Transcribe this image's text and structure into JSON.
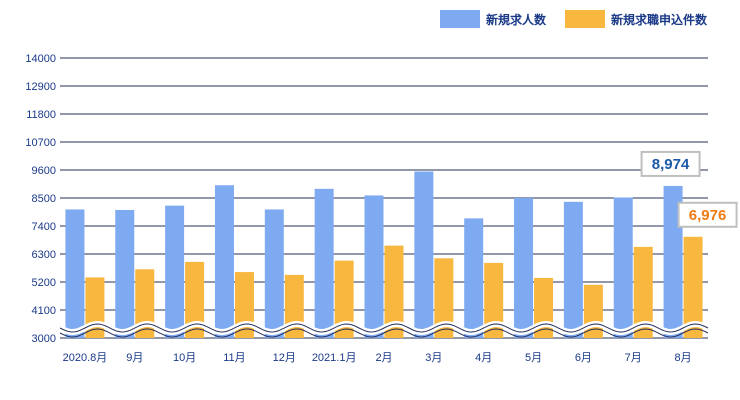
{
  "colors": {
    "series1": "#7eaaf2",
    "series2": "#f8b73f",
    "grid": "#26305a",
    "axis_text": "#1a3a88",
    "callout1_text": "#1a5aa8",
    "callout2_text": "#f07b12",
    "callout_border": "#bfbfbf"
  },
  "legend": [
    {
      "label": "新規求人数"
    },
    {
      "label": "新規求職申込件数"
    }
  ],
  "chart_data": {
    "type": "bar",
    "title": "",
    "xlabel": "",
    "ylabel": "",
    "categories": [
      "2020.8月",
      "9月",
      "10月",
      "11月",
      "12月",
      "2021.1月",
      "2月",
      "3月",
      "4月",
      "5月",
      "6月",
      "7月",
      "8月"
    ],
    "series": [
      {
        "name": "新規求人数",
        "values": [
          8050,
          8030,
          8200,
          9000,
          8050,
          8860,
          8600,
          9540,
          7700,
          8500,
          8350,
          8520,
          8974
        ]
      },
      {
        "name": "新規求職申込件数",
        "values": [
          5380,
          5700,
          5990,
          5590,
          5480,
          6040,
          6630,
          6130,
          5950,
          5360,
          5090,
          6580,
          6976
        ]
      }
    ],
    "ylim": [
      3000,
      14000
    ],
    "yticks": [
      "3000",
      "4100",
      "5200",
      "6300",
      "7400",
      "8500",
      "9600",
      "10700",
      "11800",
      "12900",
      "14000"
    ],
    "axis_break": true,
    "grid": true,
    "legend_position": "top-right",
    "annotations": [
      {
        "text": "8,974",
        "category": "8月",
        "series": "新規求人数"
      },
      {
        "text": "6,976",
        "category": "8月",
        "series": "新規求職申込件数"
      }
    ]
  }
}
